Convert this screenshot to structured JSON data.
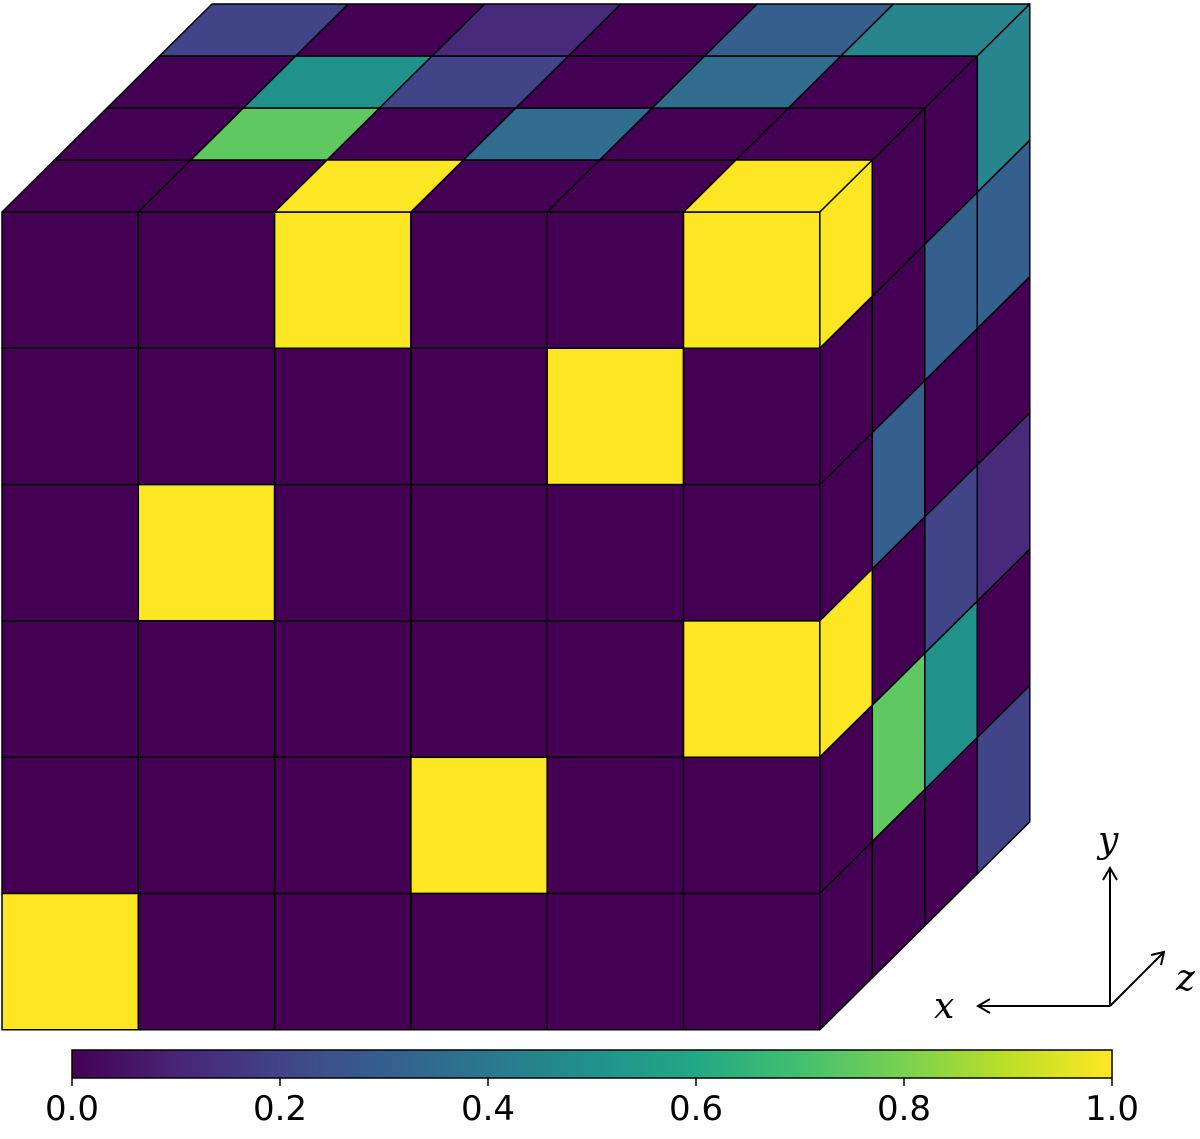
{
  "chart_data": {
    "type": "heatmap",
    "grid_shape": [
      6,
      6,
      4
    ],
    "front_face": {
      "description_rows": "top to bottom",
      "values": [
        [
          0,
          0,
          1,
          0,
          0,
          1
        ],
        [
          0,
          0,
          0,
          0,
          1,
          0
        ],
        [
          0,
          1,
          0,
          0,
          0,
          0
        ],
        [
          0,
          0,
          0,
          0,
          0,
          1
        ],
        [
          0,
          0,
          0,
          1,
          0,
          0
        ],
        [
          1,
          0,
          0,
          0,
          0,
          0
        ]
      ]
    },
    "top_face": {
      "description_rows": "front to back",
      "values": [
        [
          0.0,
          0.0,
          1.0,
          0.0,
          0.0,
          1.0
        ],
        [
          0.0,
          0.75,
          0.0,
          0.35,
          0.0,
          0.0
        ],
        [
          0.0,
          0.5,
          0.2,
          0.0,
          0.35,
          0.0
        ],
        [
          0.2,
          0.0,
          0.12,
          0.0,
          0.3,
          0.45
        ]
      ]
    },
    "right_face": {
      "description_rows": "top to bottom",
      "values": [
        [
          1.0,
          0.0,
          0.0,
          0.45
        ],
        [
          0.0,
          0.0,
          0.3,
          0.3
        ],
        [
          0.0,
          0.3,
          0.0,
          0.0
        ],
        [
          1.0,
          0.0,
          0.2,
          0.12
        ],
        [
          0.0,
          0.75,
          0.5,
          0.0
        ],
        [
          0.0,
          0.0,
          0.0,
          0.2
        ]
      ]
    },
    "colorbar": {
      "colormap": "viridis",
      "range": [
        0.0,
        1.0
      ],
      "ticks": [
        "0.0",
        "0.2",
        "0.4",
        "0.6",
        "0.8",
        "1.0"
      ]
    },
    "axes_indicator": {
      "x_label": "x",
      "y_label": "y",
      "z_label": "z"
    }
  }
}
